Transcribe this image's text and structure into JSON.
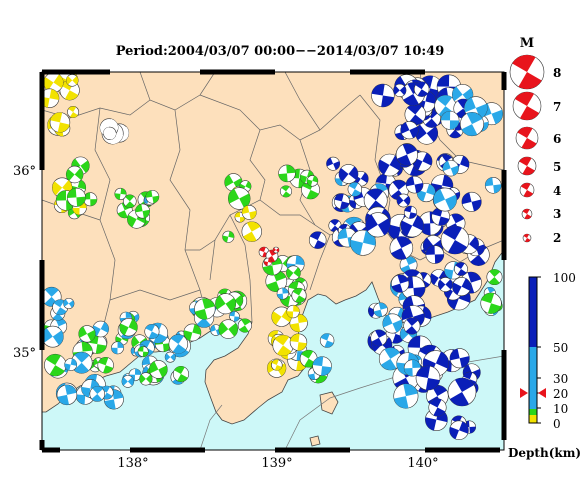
{
  "title": "Period:2004/03/07 00:00−−2014/03/07 10:49",
  "lon_labels": [
    "138°",
    "139°",
    "140°"
  ],
  "lat_labels": [
    "36°",
    "35°"
  ],
  "magnitude_legend": {
    "title": "M",
    "levels": [
      "8",
      "7",
      "6",
      "5",
      "4",
      "3",
      "2"
    ]
  },
  "depth_legend": {
    "title": "Depth(km)",
    "ticks": [
      "100",
      "50",
      "30",
      "20",
      "10",
      "0"
    ],
    "colors": {
      "shallow": "#f2e200",
      "mid": "#2bd61a",
      "deep_light": "#2aa8e8",
      "deep": "#0a1fb8"
    }
  },
  "colors": {
    "land": "#fde0bc",
    "sea": "#cdf8f8",
    "highlight": "#e8141c"
  }
}
